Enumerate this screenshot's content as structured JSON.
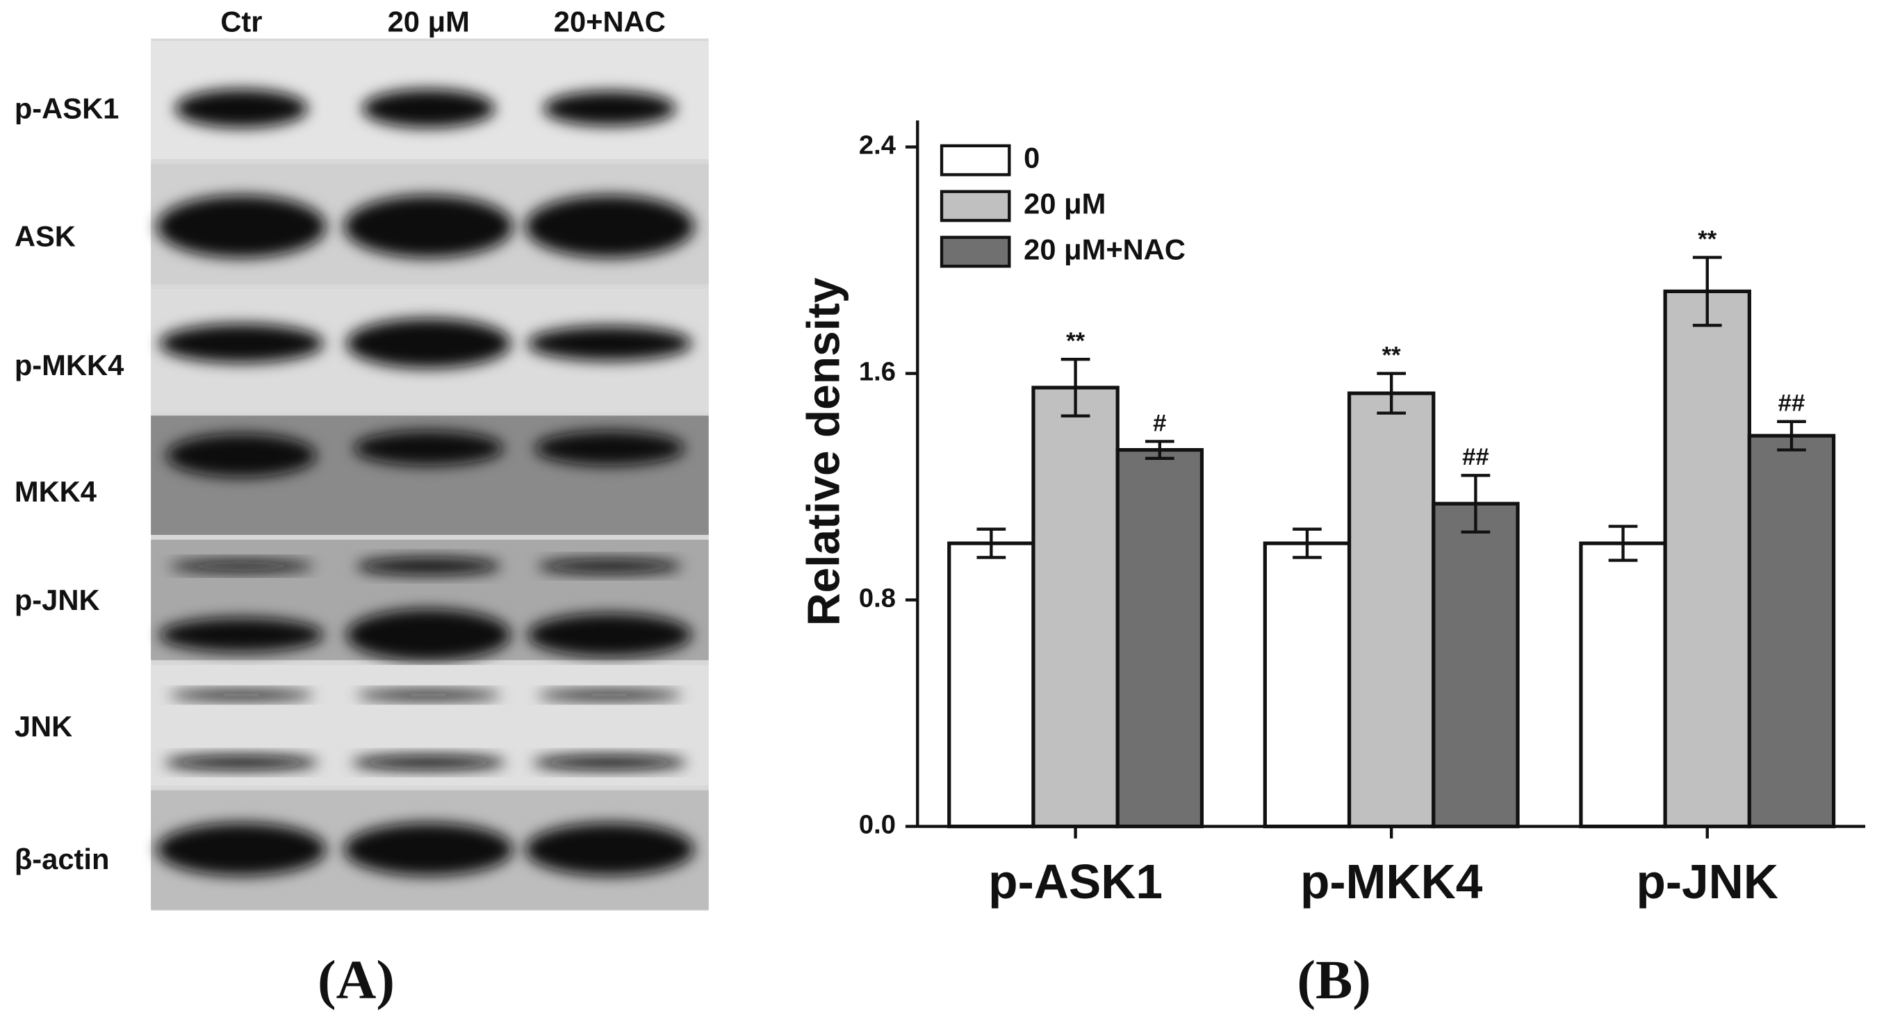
{
  "blot": {
    "lanes": [
      "Ctr",
      "20 μM",
      "20+NAC"
    ],
    "rows": [
      "p-ASK1",
      "ASK",
      "p-MKK4",
      "MKK4",
      "p-JNK",
      "JNK",
      "β-actin"
    ]
  },
  "panel_labels": [
    "(A)",
    "(B)"
  ],
  "chart_data": {
    "type": "bar",
    "ylabel": "Relative density",
    "categories": [
      "p-ASK1",
      "p-MKK4",
      "p-JNK"
    ],
    "series": [
      {
        "name": "0",
        "color": "#ffffff",
        "values": [
          1.0,
          1.0,
          1.0
        ],
        "errors": [
          0.05,
          0.05,
          0.06
        ]
      },
      {
        "name": "20 μM",
        "color": "#c0c0c0",
        "values": [
          1.55,
          1.53,
          1.89
        ],
        "errors": [
          0.1,
          0.07,
          0.12
        ],
        "annotations": [
          "**",
          "**",
          "**"
        ]
      },
      {
        "name": "20 μM+NAC",
        "color": "#707070",
        "values": [
          1.33,
          1.14,
          1.38
        ],
        "errors": [
          0.03,
          0.1,
          0.05
        ],
        "annotations": [
          "#",
          "##",
          "##"
        ]
      }
    ],
    "ylim": [
      0,
      2.4
    ],
    "yticks": [
      {
        "value": 0,
        "label": "0.0"
      },
      0.8,
      1.6,
      2.4
    ],
    "legend": "upper left"
  }
}
